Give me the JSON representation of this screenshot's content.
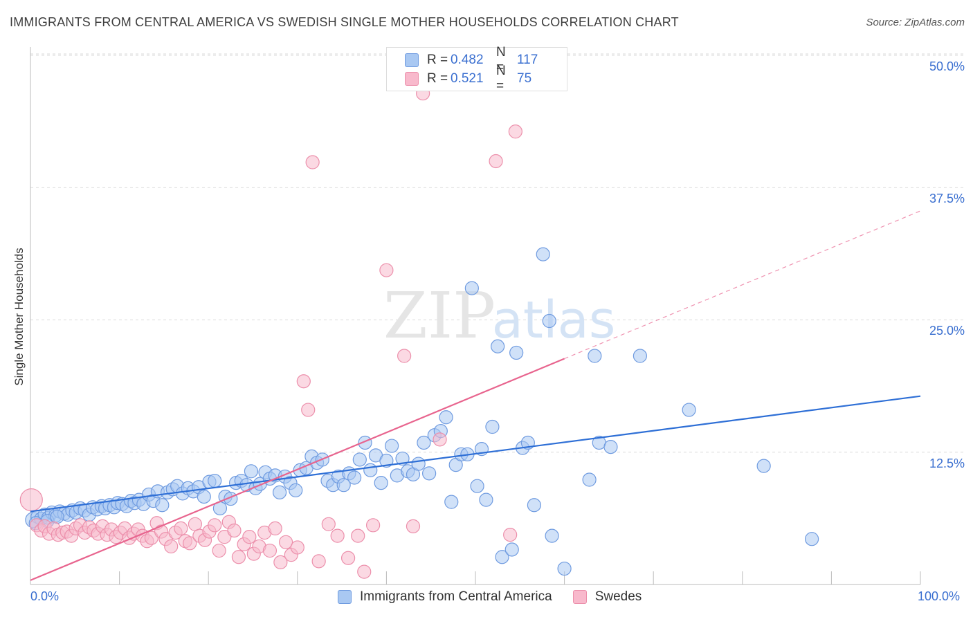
{
  "title": "IMMIGRANTS FROM CENTRAL AMERICA VS SWEDISH SINGLE MOTHER HOUSEHOLDS CORRELATION CHART",
  "source": "Source: ZipAtlas.com",
  "watermark": {
    "zip": "ZIP",
    "atlas": "atlas"
  },
  "legend": {
    "rows": [
      {
        "r_label": "R =",
        "r_value": "0.482",
        "n_label": "N =",
        "n_value": "117",
        "color": "#a9c8f2"
      },
      {
        "r_label": "R =",
        "r_value": "0.521",
        "n_label": "N =",
        "n_value": "75",
        "color": "#f8b9cc"
      }
    ]
  },
  "colors": {
    "blue_fill": "#a9c8f2",
    "blue_stroke": "#6f9be0",
    "blue_line": "#2e6fd6",
    "pink_fill": "#f8b9cc",
    "pink_stroke": "#ec8fab",
    "pink_line": "#e8648e",
    "tick_text": "#3a6fd0",
    "grid": "#d9d9d9"
  },
  "chart_data": {
    "type": "scatter",
    "title": "IMMIGRANTS FROM CENTRAL AMERICA VS SWEDISH SINGLE MOTHER HOUSEHOLDS CORRELATION CHART",
    "xlabel": "",
    "ylabel": "Single Mother Households",
    "xlim": [
      0,
      100
    ],
    "ylim": [
      0,
      50
    ],
    "x_tick_labels": [
      "0.0%",
      "100.0%"
    ],
    "y_ticks": [
      12.5,
      25.0,
      37.5,
      50.0
    ],
    "y_tick_labels": [
      "12.5%",
      "25.0%",
      "37.5%",
      "50.0%"
    ],
    "grid": "horizontal dashed",
    "legend_position": "top-center",
    "series": [
      {
        "name": "Immigrants from Central America",
        "color": "#a9c8f2",
        "trend": {
          "x": [
            0,
            100
          ],
          "y": [
            6.9,
            17.8
          ],
          "dashed_from": null
        },
        "points": [
          [
            0.3,
            6.1
          ],
          [
            0.8,
            6.4
          ],
          [
            1.2,
            6.2
          ],
          [
            1.6,
            6.6
          ],
          [
            2.0,
            6.3
          ],
          [
            2.4,
            6.8
          ],
          [
            2.8,
            6.5
          ],
          [
            3.3,
            6.9
          ],
          [
            3.8,
            6.7
          ],
          [
            4.2,
            6.6
          ],
          [
            4.7,
            7.0
          ],
          [
            5.1,
            6.8
          ],
          [
            5.6,
            7.2
          ],
          [
            6.1,
            7.0
          ],
          [
            6.6,
            6.6
          ],
          [
            7.0,
            7.3
          ],
          [
            7.5,
            7.1
          ],
          [
            8.0,
            7.4
          ],
          [
            8.4,
            7.2
          ],
          [
            8.9,
            7.5
          ],
          [
            9.4,
            7.3
          ],
          [
            9.8,
            7.7
          ],
          [
            10.3,
            7.6
          ],
          [
            10.8,
            7.4
          ],
          [
            11.3,
            7.9
          ],
          [
            11.7,
            7.7
          ],
          [
            12.2,
            8.0
          ],
          [
            12.7,
            7.6
          ],
          [
            13.3,
            8.5
          ],
          [
            13.8,
            7.9
          ],
          [
            14.3,
            8.8
          ],
          [
            14.8,
            7.5
          ],
          [
            15.4,
            8.7
          ],
          [
            16.0,
            9.0
          ],
          [
            16.5,
            9.3
          ],
          [
            17.1,
            8.6
          ],
          [
            17.7,
            9.1
          ],
          [
            18.3,
            8.8
          ],
          [
            18.9,
            9.2
          ],
          [
            19.5,
            8.3
          ],
          [
            20.1,
            9.7
          ],
          [
            20.7,
            9.8
          ],
          [
            21.3,
            7.2
          ],
          [
            21.9,
            8.3
          ],
          [
            22.5,
            8.1
          ],
          [
            23.1,
            9.6
          ],
          [
            23.7,
            9.8
          ],
          [
            24.3,
            9.4
          ],
          [
            24.8,
            10.7
          ],
          [
            25.3,
            9.1
          ],
          [
            25.8,
            9.5
          ],
          [
            26.4,
            10.6
          ],
          [
            26.9,
            10.0
          ],
          [
            27.5,
            10.3
          ],
          [
            28.0,
            8.7
          ],
          [
            28.6,
            10.2
          ],
          [
            29.2,
            9.6
          ],
          [
            29.8,
            8.9
          ],
          [
            30.3,
            10.8
          ],
          [
            31.0,
            11.0
          ],
          [
            31.6,
            12.1
          ],
          [
            32.2,
            11.5
          ],
          [
            32.8,
            11.8
          ],
          [
            33.4,
            9.8
          ],
          [
            34.0,
            9.4
          ],
          [
            34.6,
            10.2
          ],
          [
            35.2,
            9.4
          ],
          [
            35.8,
            10.5
          ],
          [
            36.4,
            10.1
          ],
          [
            37.0,
            11.8
          ],
          [
            37.6,
            13.4
          ],
          [
            38.2,
            10.8
          ],
          [
            38.8,
            12.2
          ],
          [
            39.4,
            9.6
          ],
          [
            40.0,
            11.7
          ],
          [
            40.6,
            13.1
          ],
          [
            41.2,
            10.3
          ],
          [
            41.8,
            11.9
          ],
          [
            42.4,
            10.7
          ],
          [
            43.0,
            10.4
          ],
          [
            43.6,
            11.4
          ],
          [
            44.2,
            13.4
          ],
          [
            44.8,
            10.5
          ],
          [
            45.4,
            14.1
          ],
          [
            46.1,
            14.5
          ],
          [
            46.7,
            15.8
          ],
          [
            47.3,
            7.8
          ],
          [
            47.8,
            11.3
          ],
          [
            48.4,
            12.3
          ],
          [
            49.1,
            12.3
          ],
          [
            49.6,
            28.0
          ],
          [
            50.2,
            9.3
          ],
          [
            50.7,
            12.8
          ],
          [
            51.2,
            8.0
          ],
          [
            51.9,
            14.9
          ],
          [
            52.5,
            22.5
          ],
          [
            53.0,
            2.6
          ],
          [
            54.1,
            3.3
          ],
          [
            54.6,
            21.9
          ],
          [
            55.3,
            12.9
          ],
          [
            55.9,
            13.4
          ],
          [
            56.6,
            7.5
          ],
          [
            57.6,
            31.2
          ],
          [
            58.3,
            24.9
          ],
          [
            58.6,
            4.6
          ],
          [
            60.0,
            1.5
          ],
          [
            62.8,
            9.9
          ],
          [
            63.4,
            21.6
          ],
          [
            63.9,
            13.4
          ],
          [
            65.2,
            13.0
          ],
          [
            68.5,
            21.6
          ],
          [
            74.0,
            16.5
          ],
          [
            82.4,
            11.2
          ],
          [
            87.8,
            4.3
          ],
          [
            0.6,
            5.8
          ],
          [
            1.9,
            6.0
          ],
          [
            3.0,
            6.4
          ]
        ]
      },
      {
        "name": "Swedes",
        "color": "#f8b9cc",
        "trend": {
          "x": [
            0,
            100
          ],
          "y": [
            0.4,
            35.3
          ],
          "dashed_from": 60
        },
        "points": [
          [
            0.1,
            8.0
          ],
          [
            0.7,
            5.6
          ],
          [
            1.2,
            5.1
          ],
          [
            1.6,
            5.5
          ],
          [
            2.1,
            4.8
          ],
          [
            2.6,
            5.3
          ],
          [
            3.1,
            4.7
          ],
          [
            3.6,
            4.9
          ],
          [
            4.1,
            5.0
          ],
          [
            4.6,
            4.6
          ],
          [
            5.1,
            5.3
          ],
          [
            5.6,
            5.6
          ],
          [
            6.1,
            4.9
          ],
          [
            6.6,
            5.4
          ],
          [
            7.1,
            5.1
          ],
          [
            7.6,
            4.8
          ],
          [
            8.1,
            5.5
          ],
          [
            8.6,
            4.7
          ],
          [
            9.1,
            5.2
          ],
          [
            9.6,
            4.5
          ],
          [
            10.1,
            4.9
          ],
          [
            10.6,
            5.3
          ],
          [
            11.1,
            4.4
          ],
          [
            11.6,
            4.8
          ],
          [
            12.1,
            5.2
          ],
          [
            12.6,
            4.6
          ],
          [
            13.1,
            4.1
          ],
          [
            13.6,
            4.4
          ],
          [
            14.2,
            5.8
          ],
          [
            14.7,
            5.0
          ],
          [
            15.2,
            4.3
          ],
          [
            15.8,
            3.6
          ],
          [
            16.3,
            4.9
          ],
          [
            16.9,
            5.3
          ],
          [
            17.4,
            4.1
          ],
          [
            17.9,
            3.9
          ],
          [
            18.5,
            5.7
          ],
          [
            19.0,
            4.6
          ],
          [
            19.6,
            4.2
          ],
          [
            20.1,
            5.0
          ],
          [
            20.7,
            5.6
          ],
          [
            21.2,
            3.2
          ],
          [
            21.8,
            4.5
          ],
          [
            22.3,
            5.9
          ],
          [
            22.9,
            5.1
          ],
          [
            23.4,
            2.6
          ],
          [
            24.0,
            3.8
          ],
          [
            24.6,
            4.5
          ],
          [
            25.1,
            2.9
          ],
          [
            25.7,
            3.6
          ],
          [
            26.3,
            4.9
          ],
          [
            26.9,
            3.2
          ],
          [
            27.5,
            5.3
          ],
          [
            28.1,
            2.1
          ],
          [
            28.7,
            4.0
          ],
          [
            29.3,
            2.8
          ],
          [
            30.0,
            3.5
          ],
          [
            30.7,
            19.2
          ],
          [
            31.2,
            16.5
          ],
          [
            31.7,
            39.9
          ],
          [
            32.4,
            2.2
          ],
          [
            33.5,
            5.7
          ],
          [
            34.5,
            4.6
          ],
          [
            35.7,
            2.5
          ],
          [
            36.8,
            4.6
          ],
          [
            37.5,
            1.2
          ],
          [
            38.5,
            5.6
          ],
          [
            40.0,
            29.7
          ],
          [
            42.0,
            21.6
          ],
          [
            43.0,
            5.5
          ],
          [
            44.1,
            46.4
          ],
          [
            52.3,
            40.0
          ],
          [
            54.5,
            42.8
          ],
          [
            46.0,
            13.7
          ],
          [
            53.9,
            4.7
          ]
        ]
      }
    ]
  },
  "x_axis": {
    "left_label": "0.0%",
    "right_label": "100.0%"
  },
  "y_axis_label": "Single Mother Households",
  "y_ticks": [
    "12.5%",
    "25.0%",
    "37.5%",
    "50.0%"
  ],
  "bottom_legend": [
    {
      "label": "Immigrants from Central America",
      "color": "#a9c8f2"
    },
    {
      "label": "Swedes",
      "color": "#f8b9cc"
    }
  ]
}
